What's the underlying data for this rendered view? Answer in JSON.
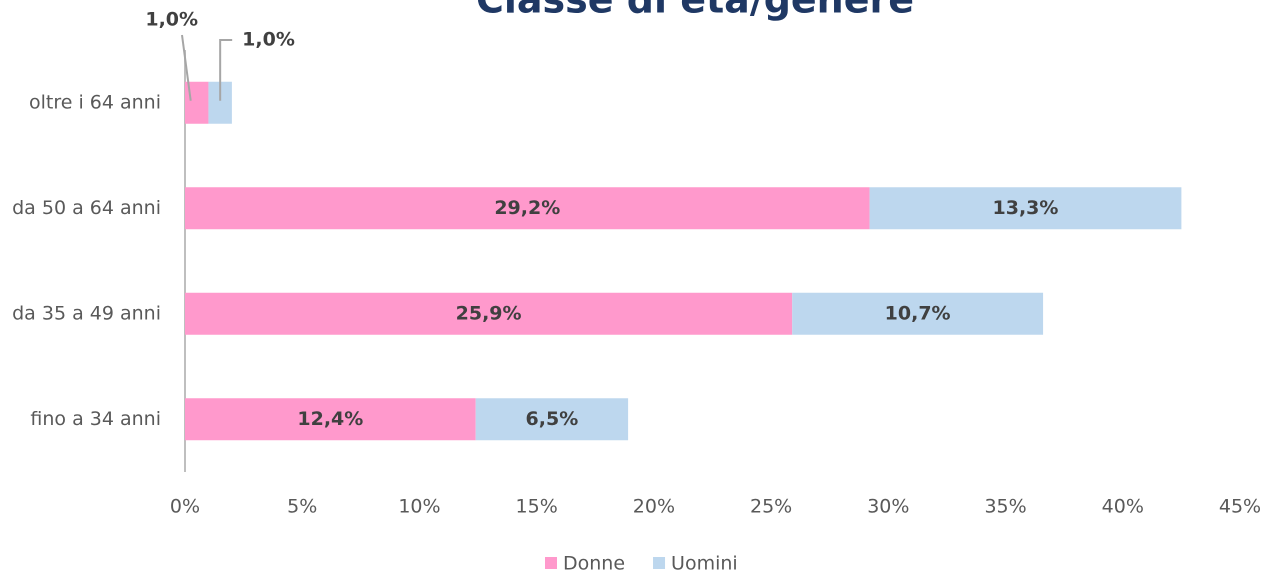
{
  "chart_data": {
    "type": "stacked-bar-horizontal",
    "title": "Classe di età/genere",
    "categories": [
      "oltre i 64 anni",
      "da 50 a 64 anni",
      "da 35 a 49 anni",
      "fino a 34 anni"
    ],
    "series": [
      {
        "name": "Donne",
        "color": "#ff99cc",
        "values": [
          1.0,
          29.2,
          25.9,
          12.4
        ],
        "value_labels": [
          "1,0%",
          "29,2%",
          "25,9%",
          "12,4%"
        ]
      },
      {
        "name": "Uomini",
        "color": "#bdd7ee",
        "values": [
          1.0,
          13.3,
          10.7,
          6.5
        ],
        "value_labels": [
          "1,0%",
          "13,3%",
          "10,7%",
          "6,5%"
        ]
      }
    ],
    "xlim": [
      0,
      45
    ],
    "xticks": [
      {
        "value": 0,
        "label": "0%"
      },
      {
        "value": 5,
        "label": "5%"
      },
      {
        "value": 10,
        "label": "10%"
      },
      {
        "value": 15,
        "label": "15%"
      },
      {
        "value": 20,
        "label": "20%"
      },
      {
        "value": 25,
        "label": "25%"
      },
      {
        "value": 30,
        "label": "30%"
      },
      {
        "value": 35,
        "label": "35%"
      },
      {
        "value": 40,
        "label": "40%"
      },
      {
        "value": 45,
        "label": "45%"
      }
    ],
    "legend": "bottom"
  }
}
